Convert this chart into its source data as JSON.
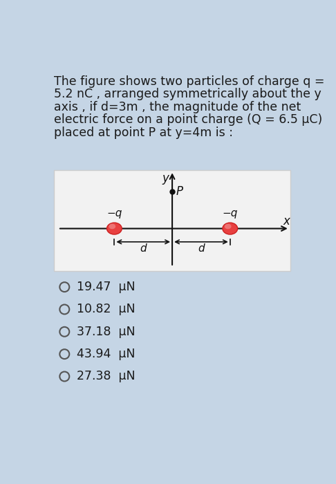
{
  "background_color": "#c5d5e5",
  "text_block_lines": [
    "The figure shows two particles of charge q =",
    "5.2 nC , arranged symmetrically about the y",
    "axis , if d=3m , the magnitude of the net",
    "electric force on a point charge (Q = 6.5 μC)",
    "placed at point P at y=4m is :"
  ],
  "text_fontsize": 12.5,
  "text_color": "#1a1a1a",
  "diagram_box_bg": "#f2f2f2",
  "diagram_box_edge": "#cccccc",
  "options": [
    "19.47  μN",
    "10.82  μN",
    "37.18  μN",
    "43.94  μN",
    "27.38  μN"
  ],
  "option_fontsize": 12.5,
  "charge_face": "#e84040",
  "charge_highlight": "#f09090",
  "charge_edge": "#cc2020",
  "axis_color": "#111111",
  "label_color": "#111111",
  "arrow_color": "#111111"
}
